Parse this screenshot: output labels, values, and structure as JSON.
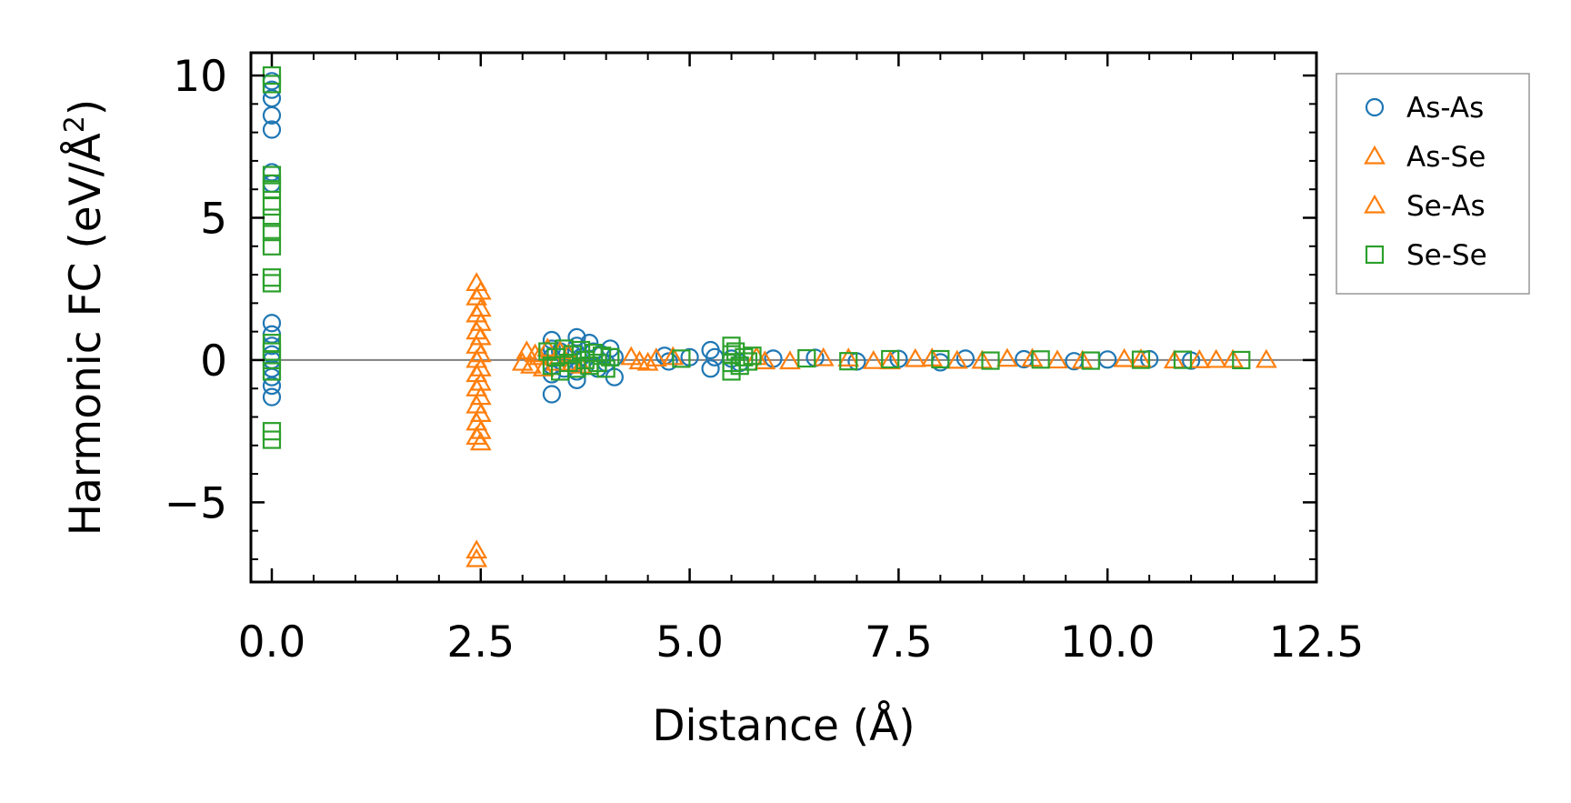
{
  "chart_data": {
    "type": "scatter",
    "title": "",
    "xlabel": "Distance (Å)",
    "ylabel_main": "Harmonic FC (eV/Å",
    "ylabel_sup": "2",
    "ylabel_close": ")",
    "xlim": [
      -0.25,
      12.5
    ],
    "ylim": [
      -7.8,
      10.8
    ],
    "xticks": [
      0.0,
      2.5,
      5.0,
      7.5,
      10.0,
      12.5
    ],
    "xtick_labels": [
      "0.0",
      "2.5",
      "5.0",
      "7.5",
      "10.0",
      "12.5"
    ],
    "xminor_step": 0.5,
    "yticks": [
      -5,
      0,
      5,
      10
    ],
    "ytick_labels": [
      "−5",
      "0",
      "5",
      "10"
    ],
    "yminor_step": 1,
    "zero_line": 0,
    "legend_position": "outside-upper-right",
    "series": [
      {
        "name": "As-As",
        "marker": "circle",
        "color": "#1f77b4",
        "points": [
          [
            0,
            9.8
          ],
          [
            0,
            9.5
          ],
          [
            0,
            9.2
          ],
          [
            0,
            8.6
          ],
          [
            0,
            8.1
          ],
          [
            0,
            6.6
          ],
          [
            0,
            6.2
          ],
          [
            0,
            1.3
          ],
          [
            0,
            0.9
          ],
          [
            0,
            0.5
          ],
          [
            0,
            0.2
          ],
          [
            0,
            0
          ],
          [
            0,
            -0.3
          ],
          [
            0,
            -0.6
          ],
          [
            0,
            -0.9
          ],
          [
            0,
            -1.3
          ],
          [
            3.35,
            0.7
          ],
          [
            3.35,
            0.4
          ],
          [
            3.35,
            0.1
          ],
          [
            3.35,
            -0.2
          ],
          [
            3.35,
            -0.5
          ],
          [
            3.35,
            -1.2
          ],
          [
            3.45,
            0.3
          ],
          [
            3.5,
            -0.3
          ],
          [
            3.6,
            0.2
          ],
          [
            3.65,
            0.8
          ],
          [
            3.65,
            0.5
          ],
          [
            3.65,
            -0.4
          ],
          [
            3.65,
            -0.7
          ],
          [
            3.7,
            0.1
          ],
          [
            3.75,
            -0.2
          ],
          [
            3.8,
            0.6
          ],
          [
            3.85,
            0.3
          ],
          [
            3.9,
            -0.3
          ],
          [
            3.95,
            0.2
          ],
          [
            4.0,
            -0.1
          ],
          [
            4.05,
            0.4
          ],
          [
            4.1,
            0.1
          ],
          [
            4.1,
            -0.6
          ],
          [
            4.7,
            0.15
          ],
          [
            4.75,
            -0.05
          ],
          [
            5.0,
            0.1
          ],
          [
            5.25,
            0.35
          ],
          [
            5.25,
            -0.3
          ],
          [
            5.3,
            0.1
          ],
          [
            5.5,
            0.05
          ],
          [
            5.6,
            -0.1
          ],
          [
            6.0,
            0.05
          ],
          [
            6.5,
            0.08
          ],
          [
            7.0,
            -0.05
          ],
          [
            7.5,
            0.04
          ],
          [
            8.0,
            -0.08
          ],
          [
            8.3,
            0.05
          ],
          [
            9.0,
            0.03
          ],
          [
            9.6,
            -0.04
          ],
          [
            10.0,
            0.02
          ],
          [
            10.5,
            0.03
          ],
          [
            11.0,
            -0.02
          ]
        ]
      },
      {
        "name": "As-Se",
        "marker": "triangle",
        "color": "#ff7f0e",
        "points": [
          [
            2.45,
            2.7
          ],
          [
            2.45,
            2.2
          ],
          [
            2.45,
            1.6
          ],
          [
            2.45,
            1.0
          ],
          [
            2.45,
            0.5
          ],
          [
            2.45,
            0.0
          ],
          [
            2.45,
            -0.5
          ],
          [
            2.45,
            -1.0
          ],
          [
            2.45,
            -1.6
          ],
          [
            2.45,
            -2.2
          ],
          [
            2.45,
            -2.7
          ],
          [
            2.45,
            -6.7
          ],
          [
            3.05,
            0.3
          ],
          [
            3.1,
            -0.2
          ],
          [
            3.2,
            0.1
          ],
          [
            3.3,
            0.4
          ],
          [
            3.4,
            -0.1
          ],
          [
            3.55,
            0.2
          ],
          [
            3.7,
            -0.2
          ],
          [
            4.3,
            0.1
          ],
          [
            4.5,
            -0.1
          ],
          [
            4.6,
            0.05
          ],
          [
            5.8,
            0.1
          ],
          [
            6.2,
            -0.05
          ],
          [
            6.9,
            0.05
          ],
          [
            7.4,
            -0.05
          ],
          [
            7.9,
            0.05
          ],
          [
            8.5,
            -0.03
          ],
          [
            9.1,
            0.04
          ],
          [
            9.7,
            -0.03
          ],
          [
            10.2,
            0.03
          ],
          [
            10.8,
            -0.02
          ],
          [
            11.3,
            0.0
          ],
          [
            11.9,
            0.0
          ]
        ]
      },
      {
        "name": "Se-As",
        "marker": "triangle",
        "color": "#ff7f0e",
        "points": [
          [
            2.5,
            2.4
          ],
          [
            2.5,
            1.8
          ],
          [
            2.5,
            1.3
          ],
          [
            2.5,
            0.8
          ],
          [
            2.5,
            0.2
          ],
          [
            2.5,
            -0.3
          ],
          [
            2.5,
            -0.8
          ],
          [
            2.5,
            -1.3
          ],
          [
            2.5,
            -1.9
          ],
          [
            2.5,
            -2.5
          ],
          [
            2.5,
            -2.9
          ],
          [
            2.45,
            -7.0
          ],
          [
            3.0,
            -0.1
          ],
          [
            3.15,
            0.2
          ],
          [
            3.25,
            -0.3
          ],
          [
            3.45,
            0.3
          ],
          [
            3.6,
            -0.1
          ],
          [
            4.4,
            -0.05
          ],
          [
            4.8,
            0.1
          ],
          [
            5.9,
            -0.05
          ],
          [
            6.6,
            0.06
          ],
          [
            7.2,
            -0.04
          ],
          [
            7.7,
            0.03
          ],
          [
            8.2,
            -0.03
          ],
          [
            8.8,
            0.04
          ],
          [
            9.4,
            -0.02
          ],
          [
            10.4,
            0.02
          ],
          [
            11.1,
            -0.01
          ],
          [
            11.5,
            0.0
          ]
        ]
      },
      {
        "name": "Se-Se",
        "marker": "square",
        "color": "#2ca02c",
        "points": [
          [
            0,
            10.0
          ],
          [
            0,
            9.7
          ],
          [
            0,
            6.5
          ],
          [
            0,
            6.2
          ],
          [
            0,
            6.0
          ],
          [
            0,
            5.4
          ],
          [
            0,
            5.0
          ],
          [
            0,
            4.5
          ],
          [
            0,
            4.0
          ],
          [
            0,
            2.9
          ],
          [
            0,
            2.7
          ],
          [
            0,
            0.6
          ],
          [
            0,
            0.3
          ],
          [
            0,
            0.0
          ],
          [
            0,
            -0.4
          ],
          [
            0,
            -2.5
          ],
          [
            0,
            -2.8
          ],
          [
            3.3,
            0.3
          ],
          [
            3.35,
            -0.2
          ],
          [
            3.4,
            0.1
          ],
          [
            3.45,
            -0.4
          ],
          [
            3.5,
            0.4
          ],
          [
            3.55,
            -0.1
          ],
          [
            3.6,
            0.2
          ],
          [
            3.65,
            -0.3
          ],
          [
            3.7,
            0.35
          ],
          [
            3.75,
            0.0
          ],
          [
            3.8,
            -0.2
          ],
          [
            3.85,
            0.25
          ],
          [
            3.9,
            -0.1
          ],
          [
            3.95,
            0.15
          ],
          [
            4.0,
            -0.3
          ],
          [
            4.05,
            0.1
          ],
          [
            5.5,
            0.5
          ],
          [
            5.5,
            0.2
          ],
          [
            5.5,
            -0.1
          ],
          [
            5.5,
            -0.4
          ],
          [
            5.55,
            0.3
          ],
          [
            5.6,
            -0.2
          ],
          [
            5.65,
            0.1
          ],
          [
            5.7,
            -0.05
          ],
          [
            5.75,
            0.15
          ],
          [
            4.9,
            0.05
          ],
          [
            6.4,
            0.06
          ],
          [
            6.9,
            -0.04
          ],
          [
            7.4,
            0.03
          ],
          [
            8.0,
            0.03
          ],
          [
            8.6,
            -0.02
          ],
          [
            9.2,
            0.02
          ],
          [
            9.8,
            -0.02
          ],
          [
            10.4,
            0.01
          ],
          [
            10.9,
            0.01
          ],
          [
            11.6,
            0.0
          ]
        ]
      }
    ]
  }
}
